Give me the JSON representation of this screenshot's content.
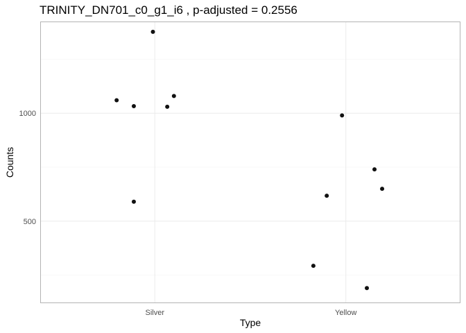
{
  "chart_data": {
    "type": "scatter",
    "title": "TRINITY_DN701_c0_g1_i6 , p-adjusted = 0.2556",
    "xlabel": "Type",
    "ylabel": "Counts",
    "categories": [
      "Silver",
      "Yellow"
    ],
    "y_ticks": [
      500,
      1000
    ],
    "ylim": [
      120,
      1425
    ],
    "grid": true,
    "points": [
      {
        "category": "Silver",
        "jitter": -0.2,
        "y": 1060
      },
      {
        "category": "Silver",
        "jitter": -0.11,
        "y": 590
      },
      {
        "category": "Silver",
        "jitter": -0.11,
        "y": 1033
      },
      {
        "category": "Silver",
        "jitter": -0.01,
        "y": 1377
      },
      {
        "category": "Silver",
        "jitter": 0.065,
        "y": 1030
      },
      {
        "category": "Silver",
        "jitter": 0.1,
        "y": 1080
      },
      {
        "category": "Yellow",
        "jitter": -0.17,
        "y": 293
      },
      {
        "category": "Yellow",
        "jitter": -0.1,
        "y": 618
      },
      {
        "category": "Yellow",
        "jitter": -0.02,
        "y": 990
      },
      {
        "category": "Yellow",
        "jitter": 0.11,
        "y": 190
      },
      {
        "category": "Yellow",
        "jitter": 0.15,
        "y": 740
      },
      {
        "category": "Yellow",
        "jitter": 0.19,
        "y": 650
      }
    ]
  }
}
